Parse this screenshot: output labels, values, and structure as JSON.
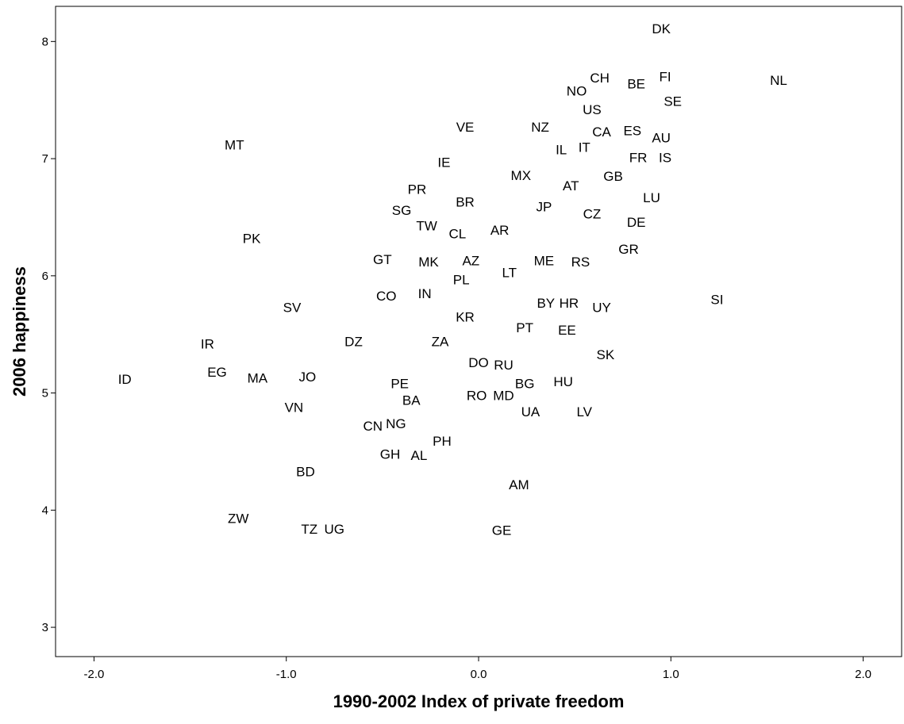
{
  "chart_data": {
    "type": "scatter",
    "xlabel": "1990-2002 Index of private freedom",
    "ylabel": "2006 happiness",
    "xlim": [
      -2.2,
      2.2
    ],
    "ylim": [
      2.75,
      8.3
    ],
    "xticks": [
      "-2.0",
      "-1.0",
      "0.0",
      "1.0",
      "2.0"
    ],
    "xtick_values": [
      -2.0,
      -1.0,
      0.0,
      1.0,
      2.0
    ],
    "yticks": [
      "3",
      "4",
      "5",
      "6",
      "7",
      "8"
    ],
    "ytick_values": [
      3,
      4,
      5,
      6,
      7,
      8
    ],
    "grid": false,
    "legend": "none",
    "points": [
      {
        "label": "DK",
        "x": 0.95,
        "y": 8.11
      },
      {
        "label": "CH",
        "x": 0.63,
        "y": 7.69
      },
      {
        "label": "NO",
        "x": 0.51,
        "y": 7.58
      },
      {
        "label": "BE",
        "x": 0.82,
        "y": 7.64
      },
      {
        "label": "FI",
        "x": 0.97,
        "y": 7.7
      },
      {
        "label": "NL",
        "x": 1.56,
        "y": 7.67
      },
      {
        "label": "SE",
        "x": 1.01,
        "y": 7.49
      },
      {
        "label": "US",
        "x": 0.59,
        "y": 7.42
      },
      {
        "label": "NZ",
        "x": 0.32,
        "y": 7.27
      },
      {
        "label": "VE",
        "x": -0.07,
        "y": 7.27
      },
      {
        "label": "CA",
        "x": 0.64,
        "y": 7.23
      },
      {
        "label": "ES",
        "x": 0.8,
        "y": 7.24
      },
      {
        "label": "AU",
        "x": 0.95,
        "y": 7.18
      },
      {
        "label": "MT",
        "x": -1.27,
        "y": 7.12
      },
      {
        "label": "IL",
        "x": 0.43,
        "y": 7.08
      },
      {
        "label": "IT",
        "x": 0.55,
        "y": 7.1
      },
      {
        "label": "FR",
        "x": 0.83,
        "y": 7.01
      },
      {
        "label": "IS",
        "x": 0.97,
        "y": 7.01
      },
      {
        "label": "IE",
        "x": -0.18,
        "y": 6.97
      },
      {
        "label": "MX",
        "x": 0.22,
        "y": 6.86
      },
      {
        "label": "GB",
        "x": 0.7,
        "y": 6.85
      },
      {
        "label": "AT",
        "x": 0.48,
        "y": 6.77
      },
      {
        "label": "PR",
        "x": -0.32,
        "y": 6.74
      },
      {
        "label": "LU",
        "x": 0.9,
        "y": 6.67
      },
      {
        "label": "BR",
        "x": -0.07,
        "y": 6.63
      },
      {
        "label": "JP",
        "x": 0.34,
        "y": 6.59
      },
      {
        "label": "SG",
        "x": -0.4,
        "y": 6.56
      },
      {
        "label": "CZ",
        "x": 0.59,
        "y": 6.53
      },
      {
        "label": "DE",
        "x": 0.82,
        "y": 6.46
      },
      {
        "label": "TW",
        "x": -0.27,
        "y": 6.43
      },
      {
        "label": "AR",
        "x": 0.11,
        "y": 6.39
      },
      {
        "label": "CL",
        "x": -0.11,
        "y": 6.36
      },
      {
        "label": "PK",
        "x": -1.18,
        "y": 6.32
      },
      {
        "label": "GR",
        "x": 0.78,
        "y": 6.23
      },
      {
        "label": "GT",
        "x": -0.5,
        "y": 6.14
      },
      {
        "label": "MK",
        "x": -0.26,
        "y": 6.12
      },
      {
        "label": "AZ",
        "x": -0.04,
        "y": 6.13
      },
      {
        "label": "ME",
        "x": 0.34,
        "y": 6.13
      },
      {
        "label": "RS",
        "x": 0.53,
        "y": 6.12
      },
      {
        "label": "LT",
        "x": 0.16,
        "y": 6.03
      },
      {
        "label": "PL",
        "x": -0.09,
        "y": 5.97
      },
      {
        "label": "IN",
        "x": -0.28,
        "y": 5.85
      },
      {
        "label": "CO",
        "x": -0.48,
        "y": 5.83
      },
      {
        "label": "SI",
        "x": 1.24,
        "y": 5.8
      },
      {
        "label": "BY",
        "x": 0.35,
        "y": 5.77
      },
      {
        "label": "HR",
        "x": 0.47,
        "y": 5.77
      },
      {
        "label": "UY",
        "x": 0.64,
        "y": 5.73
      },
      {
        "label": "SV",
        "x": -0.97,
        "y": 5.73
      },
      {
        "label": "KR",
        "x": -0.07,
        "y": 5.65
      },
      {
        "label": "PT",
        "x": 0.24,
        "y": 5.56
      },
      {
        "label": "EE",
        "x": 0.46,
        "y": 5.54
      },
      {
        "label": "DZ",
        "x": -0.65,
        "y": 5.44
      },
      {
        "label": "ZA",
        "x": -0.2,
        "y": 5.44
      },
      {
        "label": "IR",
        "x": -1.41,
        "y": 5.42
      },
      {
        "label": "SK",
        "x": 0.66,
        "y": 5.33
      },
      {
        "label": "DO",
        "x": 0.0,
        "y": 5.26
      },
      {
        "label": "RU",
        "x": 0.13,
        "y": 5.24
      },
      {
        "label": "EG",
        "x": -1.36,
        "y": 5.18
      },
      {
        "label": "MA",
        "x": -1.15,
        "y": 5.13
      },
      {
        "label": "JO",
        "x": -0.89,
        "y": 5.14
      },
      {
        "label": "ID",
        "x": -1.84,
        "y": 5.12
      },
      {
        "label": "HU",
        "x": 0.44,
        "y": 5.1
      },
      {
        "label": "BG",
        "x": 0.24,
        "y": 5.08
      },
      {
        "label": "PE",
        "x": -0.41,
        "y": 5.08
      },
      {
        "label": "RO",
        "x": -0.01,
        "y": 4.98
      },
      {
        "label": "MD",
        "x": 0.13,
        "y": 4.98
      },
      {
        "label": "BA",
        "x": -0.35,
        "y": 4.94
      },
      {
        "label": "VN",
        "x": -0.96,
        "y": 4.88
      },
      {
        "label": "UA",
        "x": 0.27,
        "y": 4.84
      },
      {
        "label": "LV",
        "x": 0.55,
        "y": 4.84
      },
      {
        "label": "CN",
        "x": -0.55,
        "y": 4.72
      },
      {
        "label": "NG",
        "x": -0.43,
        "y": 4.74
      },
      {
        "label": "PH",
        "x": -0.19,
        "y": 4.59
      },
      {
        "label": "GH",
        "x": -0.46,
        "y": 4.48
      },
      {
        "label": "AL",
        "x": -0.31,
        "y": 4.47
      },
      {
        "label": "BD",
        "x": -0.9,
        "y": 4.33
      },
      {
        "label": "AM",
        "x": 0.21,
        "y": 4.22
      },
      {
        "label": "ZW",
        "x": -1.25,
        "y": 3.93
      },
      {
        "label": "TZ",
        "x": -0.88,
        "y": 3.84
      },
      {
        "label": "UG",
        "x": -0.75,
        "y": 3.84
      },
      {
        "label": "GE",
        "x": 0.12,
        "y": 3.83
      }
    ]
  }
}
